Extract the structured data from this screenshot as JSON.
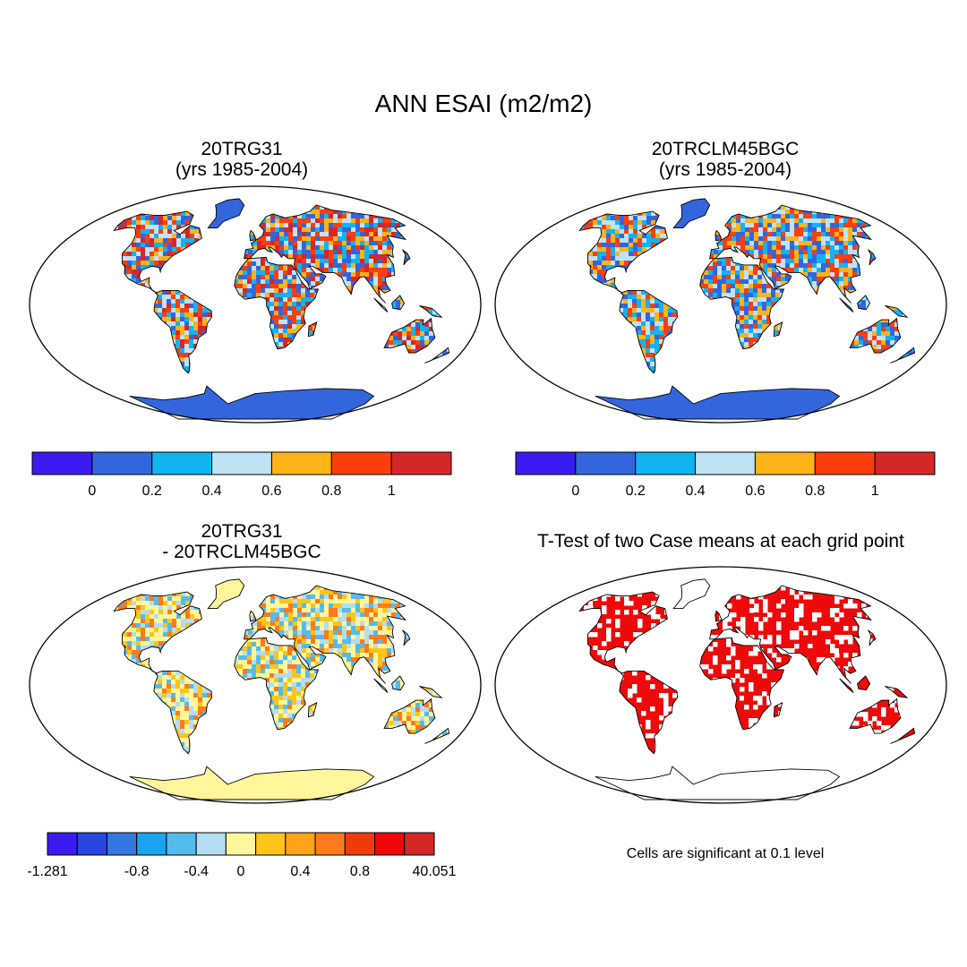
{
  "figure": {
    "title": "ANN ESAI (m2/m2)"
  },
  "panels": [
    {
      "id": "p1",
      "title_line1": "20TRG31",
      "title_line2": "(yrs 1985-2004)"
    },
    {
      "id": "p2",
      "title_line1": "20TRCLM45BGC",
      "title_line2": "(yrs 1985-2004)"
    },
    {
      "id": "p3",
      "title_line1": "20TRG31",
      "title_line2": "- 20TRCLM45BGC"
    },
    {
      "id": "p4",
      "title_line1": "T-Test of two Case means at each grid point",
      "title_line2": ""
    }
  ],
  "colorbars": {
    "case": {
      "colors": [
        "#3b1cf0",
        "#3366dd",
        "#11b4f0",
        "#bfe3f5",
        "#ffb31a",
        "#ff3d0d",
        "#d42828"
      ],
      "labels": [
        "0",
        "0.2",
        "0.4",
        "0.6",
        "0.8",
        "1"
      ]
    },
    "diff": {
      "colors": [
        "#3b1cf0",
        "#2a45e0",
        "#3377e0",
        "#1aa3ee",
        "#55bbee",
        "#b3ddf2",
        "#fff59a",
        "#ffc41a",
        "#ffa31a",
        "#ff7a1a",
        "#f03b0d",
        "#ee0808",
        "#d42828"
      ],
      "labels": [
        "-1.281",
        "-0.8",
        "-0.4",
        "0",
        "0.4",
        "0.8",
        "40.051"
      ]
    }
  },
  "ttest": {
    "note": "Cells are significant at 0.1 level",
    "significant_color": "#ee0a0a"
  }
}
